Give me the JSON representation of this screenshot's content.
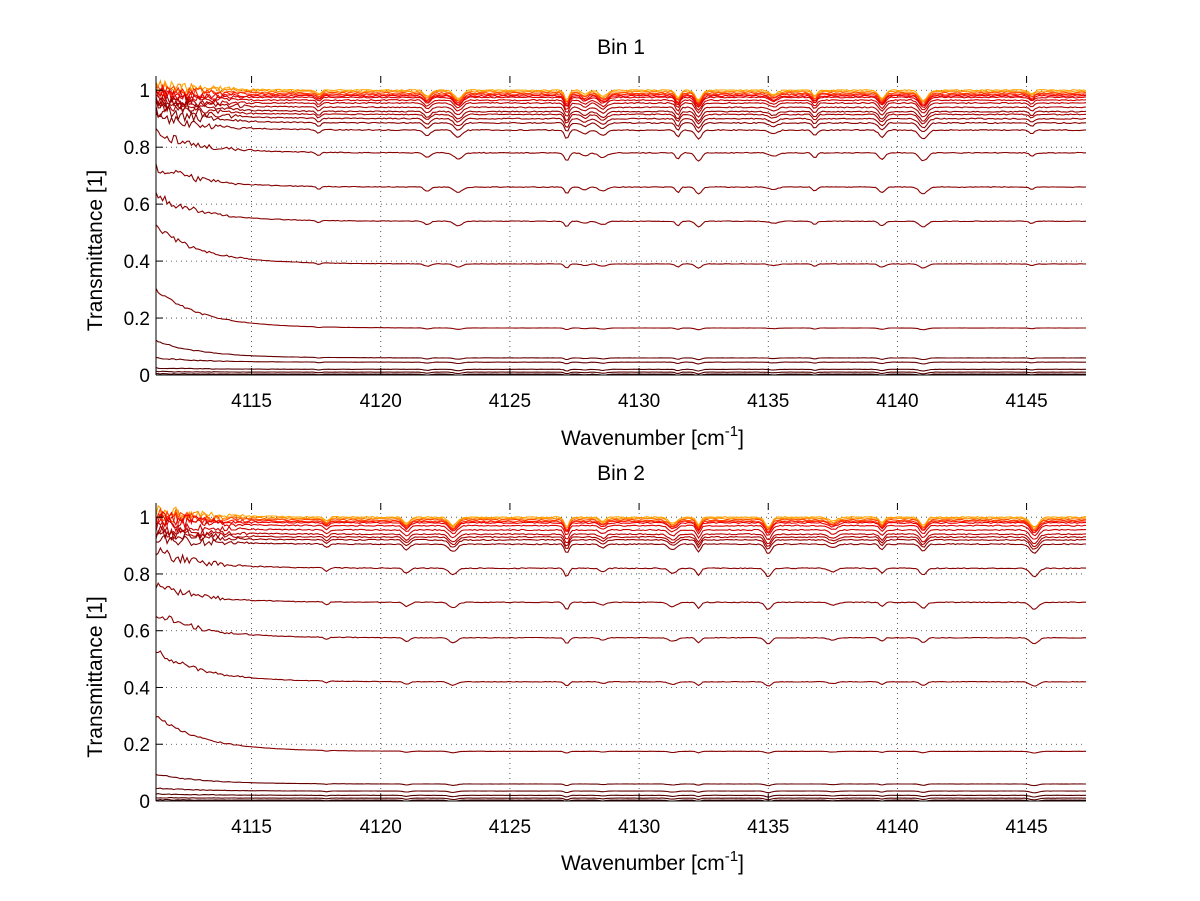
{
  "chart_data": [
    {
      "type": "line",
      "title": "Bin 1",
      "xlabel": "Wavenumber [cm",
      "xlabel_superscript": "-1",
      "xlabel_suffix": "]",
      "ylabel": "Transmittance [1]",
      "xlim": [
        4111.3,
        4147.3
      ],
      "ylim": [
        0,
        1.05
      ],
      "xticks": [
        4115,
        4120,
        4125,
        4130,
        4135,
        4140,
        4145
      ],
      "yticks": [
        0,
        0.2,
        0.4,
        0.6,
        0.8,
        1
      ],
      "ytick_labels": [
        "0",
        "0.2",
        "0.4",
        "0.6",
        "0.8",
        "1"
      ],
      "grid": "dotted",
      "legend": "none",
      "absorption_lines": [
        4117.6,
        4121.8,
        4123.0,
        4127.2,
        4127.9,
        4128.6,
        4131.5,
        4132.3,
        4135.2,
        4136.8,
        4139.4,
        4141.0,
        4145.2
      ],
      "series": [
        {
          "level": 1.0,
          "start": 1.02,
          "color": "#ffa500"
        },
        {
          "level": 0.995,
          "start": 1.02,
          "color": "#ff8c00"
        },
        {
          "level": 0.99,
          "start": 1.0,
          "color": "#ff4500"
        },
        {
          "level": 0.985,
          "start": 1.0,
          "color": "#ff2000"
        },
        {
          "level": 0.98,
          "start": 0.99,
          "color": "#ee0000"
        },
        {
          "level": 0.975,
          "start": 0.98,
          "color": "#dd0000"
        },
        {
          "level": 0.965,
          "start": 0.97,
          "color": "#cc0000"
        },
        {
          "level": 0.955,
          "start": 0.96,
          "color": "#bb0000"
        },
        {
          "level": 0.94,
          "start": 0.97,
          "color": "#aa0000"
        },
        {
          "level": 0.925,
          "start": 0.96,
          "color": "#990000"
        },
        {
          "level": 0.915,
          "start": 0.95,
          "color": "#aa0000"
        },
        {
          "level": 0.9,
          "start": 0.95,
          "color": "#990000"
        },
        {
          "level": 0.885,
          "start": 0.93,
          "color": "#880000"
        },
        {
          "level": 0.86,
          "start": 0.91,
          "color": "#880000"
        },
        {
          "level": 0.78,
          "start": 0.85,
          "color": "#880000"
        },
        {
          "level": 0.66,
          "start": 0.73,
          "color": "#880000"
        },
        {
          "level": 0.54,
          "start": 0.63,
          "color": "#880000"
        },
        {
          "level": 0.39,
          "start": 0.52,
          "color": "#880000"
        },
        {
          "level": 0.165,
          "start": 0.3,
          "color": "#880000"
        },
        {
          "level": 0.06,
          "start": 0.12,
          "color": "#660000"
        },
        {
          "level": 0.045,
          "start": 0.06,
          "color": "#660000"
        },
        {
          "level": 0.02,
          "start": 0.025,
          "color": "#550000"
        },
        {
          "level": 0.01,
          "start": 0.012,
          "color": "#550000"
        },
        {
          "level": 0.003,
          "start": 0.004,
          "color": "#440000"
        }
      ]
    },
    {
      "type": "line",
      "title": "Bin 2",
      "xlabel": "Wavenumber [cm",
      "xlabel_superscript": "-1",
      "xlabel_suffix": "]",
      "ylabel": "Transmittance [1]",
      "xlim": [
        4111.3,
        4147.3
      ],
      "ylim": [
        0,
        1.05
      ],
      "xticks": [
        4115,
        4120,
        4125,
        4130,
        4135,
        4140,
        4145
      ],
      "yticks": [
        0,
        0.2,
        0.4,
        0.6,
        0.8,
        1
      ],
      "ytick_labels": [
        "0",
        "0.2",
        "0.4",
        "0.6",
        "0.8",
        "1"
      ],
      "grid": "dotted",
      "legend": "none",
      "absorption_lines": [
        4117.9,
        4121.0,
        4122.8,
        4127.2,
        4128.6,
        4131.3,
        4132.3,
        4135.0,
        4137.5,
        4139.4,
        4141.0,
        4145.3
      ],
      "series": [
        {
          "level": 1.0,
          "start": 1.03,
          "color": "#ffa500"
        },
        {
          "level": 0.995,
          "start": 1.02,
          "color": "#ff8c00"
        },
        {
          "level": 0.99,
          "start": 1.01,
          "color": "#ff4500"
        },
        {
          "level": 0.985,
          "start": 1.0,
          "color": "#ff2000"
        },
        {
          "level": 0.98,
          "start": 1.0,
          "color": "#ee0000"
        },
        {
          "level": 0.97,
          "start": 0.99,
          "color": "#dd0000"
        },
        {
          "level": 0.955,
          "start": 0.97,
          "color": "#cc0000"
        },
        {
          "level": 0.94,
          "start": 0.96,
          "color": "#bb0000"
        },
        {
          "level": 0.93,
          "start": 0.95,
          "color": "#aa0000"
        },
        {
          "level": 0.92,
          "start": 0.94,
          "color": "#990000"
        },
        {
          "level": 0.905,
          "start": 0.93,
          "color": "#880000"
        },
        {
          "level": 0.82,
          "start": 0.88,
          "color": "#880000"
        },
        {
          "level": 0.7,
          "start": 0.76,
          "color": "#880000"
        },
        {
          "level": 0.575,
          "start": 0.66,
          "color": "#880000"
        },
        {
          "level": 0.42,
          "start": 0.53,
          "color": "#880000"
        },
        {
          "level": 0.175,
          "start": 0.3,
          "color": "#880000"
        },
        {
          "level": 0.06,
          "start": 0.095,
          "color": "#660000"
        },
        {
          "level": 0.035,
          "start": 0.045,
          "color": "#660000"
        },
        {
          "level": 0.02,
          "start": 0.025,
          "color": "#550000"
        },
        {
          "level": 0.01,
          "start": 0.012,
          "color": "#550000"
        },
        {
          "level": 0.003,
          "start": 0.004,
          "color": "#440000"
        }
      ]
    }
  ]
}
